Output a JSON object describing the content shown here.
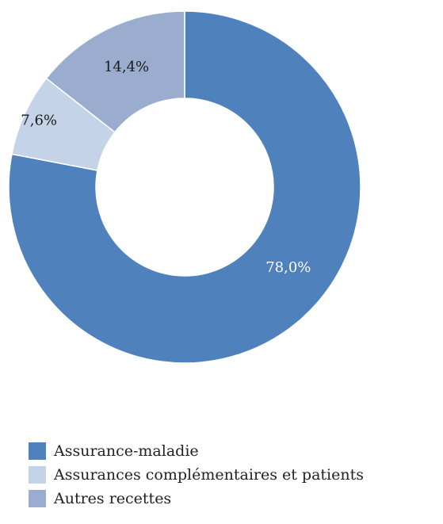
{
  "chart_data": {
    "type": "pie",
    "style": "donut",
    "series": [
      {
        "name": "Assurance-maladie",
        "value": 78.0,
        "label": "78,0%",
        "color": "#4f81bd",
        "label_color": "#ffffff"
      },
      {
        "name": "Assurances complémentaires et patients",
        "value": 7.6,
        "label": "7,6%",
        "color": "#c5d3e8",
        "label_color": "#1a1a1a"
      },
      {
        "name": "Autres recettes",
        "value": 14.4,
        "label": "14,4%",
        "color": "#9aadcf",
        "label_color": "#1a1a1a"
      }
    ],
    "start_angle_deg": 0,
    "direction": "clockwise",
    "legend_position": "bottom-left"
  }
}
